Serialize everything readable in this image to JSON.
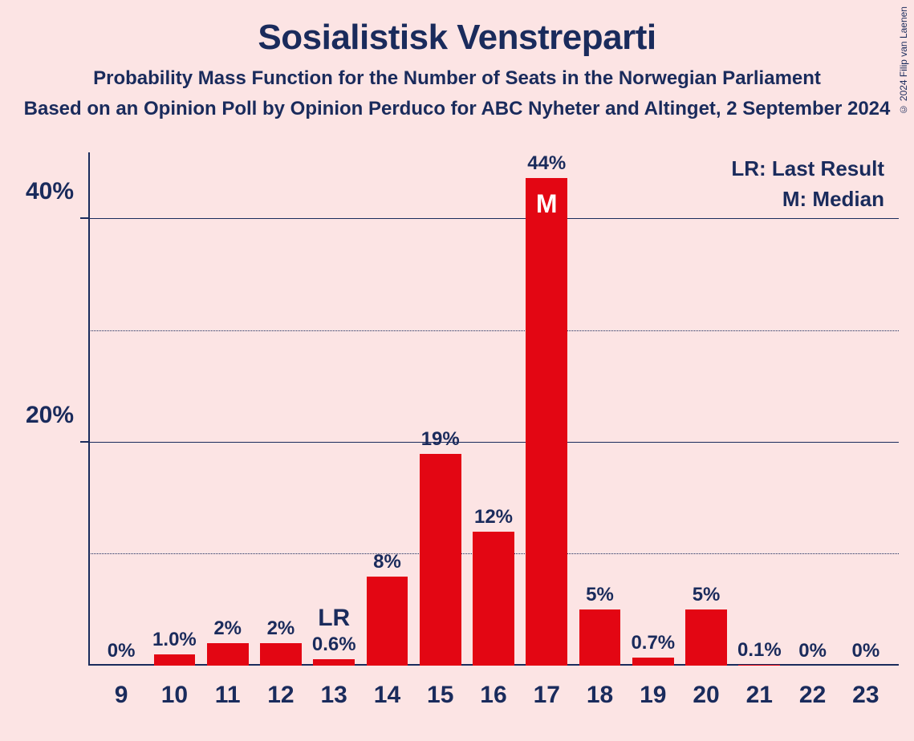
{
  "title": "Sosialistisk Venstreparti",
  "subtitle1": "Probability Mass Function for the Number of Seats in the Norwegian Parliament",
  "subtitle2": "Based on an Opinion Poll by Opinion Perduco for ABC Nyheter and Altinget, 2 September 2024",
  "copyright": "© 2024 Filip van Laenen",
  "legend": {
    "lr": "LR: Last Result",
    "m": "M: Median"
  },
  "chart": {
    "type": "bar",
    "background_color": "#fce4e4",
    "bar_color": "#e30613",
    "axis_color": "#1a2b5c",
    "text_color": "#1a2b5c",
    "inside_text_color": "#ffffff",
    "bar_width_ratio": 0.78,
    "ylim": [
      0,
      46
    ],
    "y_major_ticks": [
      20,
      40
    ],
    "y_major_labels": [
      "20%",
      "40%"
    ],
    "y_minor_ticks": [
      10,
      30
    ],
    "categories": [
      "9",
      "10",
      "11",
      "12",
      "13",
      "14",
      "15",
      "16",
      "17",
      "18",
      "19",
      "20",
      "21",
      "22",
      "23"
    ],
    "values": [
      0,
      1.0,
      2,
      2,
      0.6,
      8,
      19,
      12,
      44,
      5,
      0.7,
      5,
      0.1,
      0,
      0
    ],
    "value_labels": [
      "0%",
      "1.0%",
      "2%",
      "2%",
      "0.6%",
      "8%",
      "19%",
      "12%",
      "44%",
      "5%",
      "0.7%",
      "5%",
      "0.1%",
      "0%",
      "0%"
    ],
    "annotations": {
      "13": {
        "text": "LR",
        "position": "above"
      },
      "17": {
        "text": "M",
        "position": "inside"
      }
    },
    "title_fontsize": 44,
    "subtitle_fontsize": 24,
    "axis_label_fontsize": 30,
    "value_label_fontsize": 24,
    "legend_fontsize": 26
  }
}
